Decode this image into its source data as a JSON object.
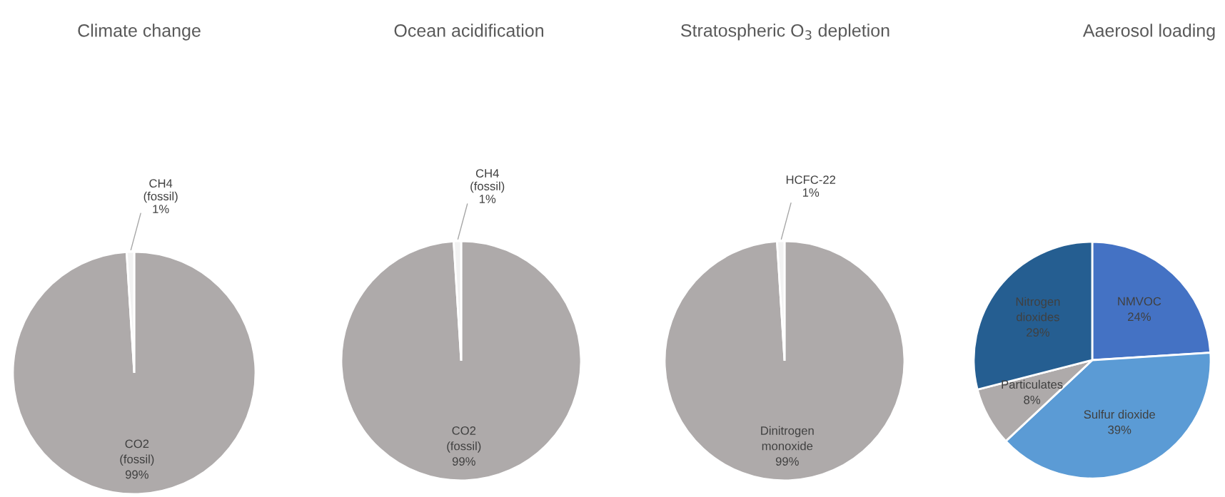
{
  "chart_data": [
    {
      "type": "pie",
      "title": "Climate change",
      "categories": [
        "CO2\n(fossil)",
        "CH4\n(fossil)"
      ],
      "values": [
        99,
        1
      ],
      "value_labels": [
        "99%",
        "1%"
      ],
      "colors": [
        "#aeaaaa",
        "#f2f2f2"
      ]
    },
    {
      "type": "pie",
      "title": "Ocean acidification",
      "categories": [
        "CO2\n(fossil)",
        "CH4\n(fossil)"
      ],
      "values": [
        99,
        1
      ],
      "value_labels": [
        "99%",
        "1%"
      ],
      "colors": [
        "#aeaaaa",
        "#f2f2f2"
      ]
    },
    {
      "type": "pie",
      "title": "Stratospheric O$_{3}$ depletion",
      "categories": [
        "Dinitrogen\nmonoxide",
        "HCFC-22"
      ],
      "values": [
        99,
        1
      ],
      "value_labels": [
        "99%",
        "1%"
      ],
      "colors": [
        "#aeaaaa",
        "#f2f2f2"
      ]
    },
    {
      "type": "pie",
      "title": "Aaerosol loading",
      "categories": [
        "NMVOC",
        "Sulfur dioxide",
        "Particulates",
        "Nitrogen\ndioxides"
      ],
      "values": [
        24,
        39,
        8,
        29
      ],
      "value_labels": [
        "24%",
        "39%",
        "8%",
        "29%"
      ],
      "colors": [
        "#4472c4",
        "#5b9bd5",
        "#aeaaaa",
        "#255e91"
      ]
    }
  ]
}
